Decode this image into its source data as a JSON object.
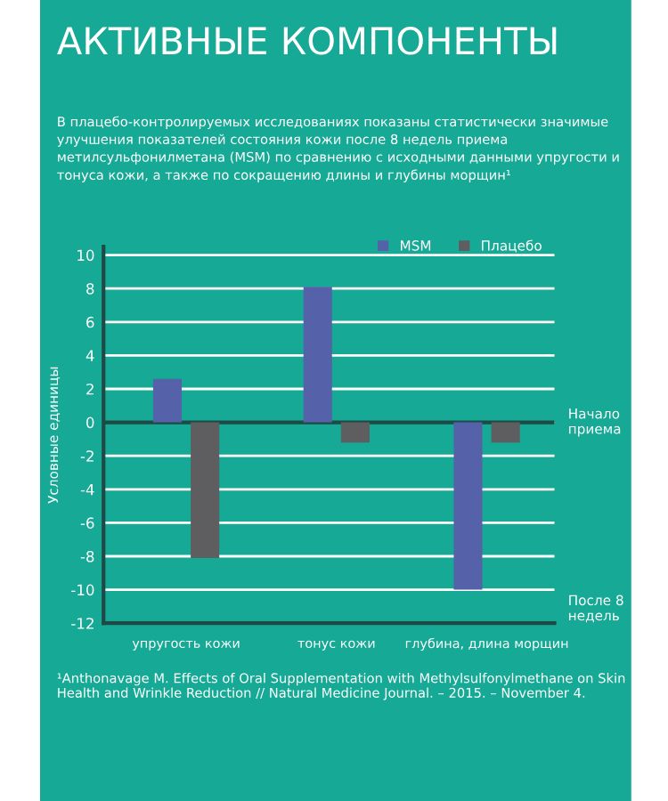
{
  "chart_data": {
    "type": "bar",
    "title": "АКТИВНЫЕ КОМПОНЕНТЫ",
    "subtitle": "В плацебо-контролируемых исследованиях показаны статистически значимые улучшения показателей состояния кожи после 8 недель приема метилсульфонилметана (MSM) по сравнению с исходными данными упругости и тонуса кожи, а также по сокращению длины и глубины морщин¹",
    "ylabel": "Условные единицы",
    "categories": [
      "упругость кожи",
      "тонус кожи",
      "глубина, длина морщин"
    ],
    "series": [
      {
        "name": "MSM",
        "color": "#5561a8",
        "values": [
          2.6,
          8.1,
          -10
        ]
      },
      {
        "name": "Плацебо",
        "color": "#5e5d5f",
        "values": [
          -8.1,
          -1.2,
          -1.2
        ]
      }
    ],
    "ylim": [
      -12,
      10.5
    ],
    "yticks": [
      -12,
      -10,
      -8,
      -6,
      -4,
      -2,
      0,
      2,
      4,
      6,
      8,
      10
    ],
    "grid": "y",
    "legend": "top right",
    "ref_lines": [
      {
        "axis": "y",
        "value": 0,
        "label": "Начало приема",
        "color": "#1e4a46"
      }
    ],
    "annotations": [
      "После 8 недель",
      "¹Anthonavage M. Effects of Oral Supplementation with Methylsulfonylmethane on Skin Health and Wrinkle Reduction // Natural Medicine Journal. – 2015. – November 4."
    ]
  }
}
